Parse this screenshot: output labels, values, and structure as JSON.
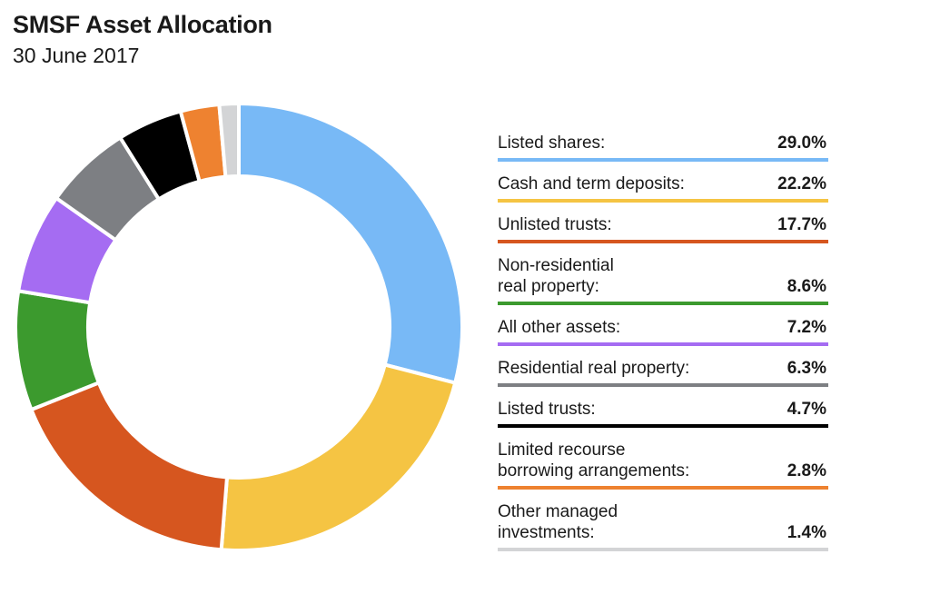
{
  "title": "SMSF Asset Allocation",
  "subtitle": "30 June 2017",
  "chart_data": {
    "type": "pie",
    "title": "SMSF Asset Allocation",
    "subtitle": "30 June 2017",
    "categories": [
      "Listed shares:",
      "Cash and term deposits:",
      "Unlisted trusts:",
      "Non-residential\nreal property:",
      "All other assets:",
      "Residential real property:",
      "Listed trusts:",
      "Limited recourse\nborrowing arrangements:",
      "Other managed\ninvestments:"
    ],
    "values": [
      29.0,
      22.2,
      17.7,
      8.6,
      7.2,
      6.3,
      4.7,
      2.8,
      1.4
    ],
    "value_labels": [
      "29.0%",
      "22.2%",
      "17.7%",
      "8.6%",
      "7.2%",
      "6.3%",
      "4.7%",
      "2.8%",
      "1.4%"
    ],
    "colors": [
      "#78b9f6",
      "#f5c443",
      "#d6561f",
      "#3c9a2e",
      "#a56cf2",
      "#7d7f83",
      "#000000",
      "#ee8230",
      "#d3d4d6"
    ],
    "legend_position": "right",
    "donut": true
  }
}
